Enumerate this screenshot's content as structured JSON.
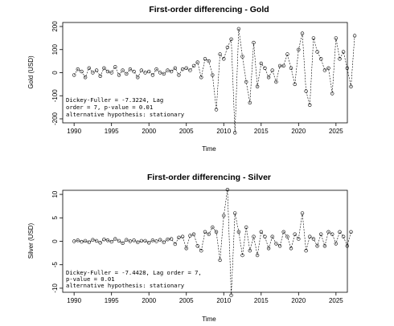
{
  "chart_data": [
    {
      "type": "line",
      "title": "First-order differencing - Gold",
      "xlabel": "Time",
      "ylabel": "Gold (USD)",
      "xlim": [
        1990,
        2025
      ],
      "ylim": [
        -200,
        200
      ],
      "x_ticks": [
        1990,
        1995,
        2000,
        2005,
        2010,
        2015,
        2020,
        2025
      ],
      "y_ticks": [
        -200,
        -100,
        0,
        100,
        200
      ],
      "grid": false,
      "marker": "open-circle",
      "line_style": "dashed",
      "annotation": [
        "Dickey-Fuller = -7.3224, Lag",
        "order = 7, p-value = 0.01",
        "alternative hypothesis: stationary"
      ],
      "series": [
        {
          "x_start": 1990.0,
          "x_step": 0.5,
          "values": [
            -10,
            15,
            5,
            -20,
            20,
            0,
            10,
            -15,
            20,
            5,
            0,
            25,
            -10,
            10,
            -5,
            15,
            5,
            -20,
            10,
            0,
            5,
            -10,
            15,
            0,
            -5,
            10,
            5,
            20,
            -10,
            15,
            20,
            10,
            30,
            45,
            -20,
            60,
            50,
            -10,
            -160,
            80,
            60,
            110,
            145,
            -260,
            190,
            70,
            -40,
            -130,
            130,
            -60,
            40,
            20,
            -20,
            10,
            -40,
            30,
            30,
            80,
            20,
            -50,
            100,
            170,
            -80,
            -140,
            150,
            90,
            60,
            10,
            20,
            -90,
            150,
            60,
            90,
            20,
            -60,
            160
          ]
        }
      ]
    },
    {
      "type": "line",
      "title": "First-order differencing - Silver",
      "xlabel": "Time",
      "ylabel": "Silver (USD)",
      "xlim": [
        1990,
        2025
      ],
      "ylim": [
        -10,
        10
      ],
      "x_ticks": [
        1990,
        1995,
        2000,
        2005,
        2010,
        2015,
        2020,
        2025
      ],
      "y_ticks": [
        -10,
        -5,
        0,
        5,
        10
      ],
      "grid": false,
      "marker": "open-circle",
      "line_style": "dashed",
      "annotation": [
        "Dickey-Fuller = -7.4428, Lag order = 7,",
        "p-value = 0.01",
        "alternative hypothesis: stationary"
      ],
      "series": [
        {
          "x_start": 1990.0,
          "x_step": 0.5,
          "values": [
            0,
            0.2,
            -0.1,
            0.1,
            -0.2,
            0.3,
            0.1,
            -0.3,
            0.4,
            0.2,
            -0.1,
            0.5,
            0.1,
            -0.4,
            0.3,
            0,
            0.2,
            -0.2,
            0.1,
            0.1,
            -0.3,
            0.2,
            0,
            0.3,
            -0.2,
            0.4,
            0.5,
            -0.6,
            0.8,
            1,
            -1.5,
            1.2,
            1.5,
            -1,
            -2,
            2,
            1.5,
            3,
            2,
            -4,
            5.5,
            11,
            -11.5,
            6,
            2,
            -3,
            3,
            -2,
            1,
            -3,
            2,
            1,
            -1.5,
            1,
            -0.5,
            -1,
            2,
            1,
            -1.5,
            1.5,
            0.5,
            6,
            -2,
            1,
            0.5,
            -1,
            1.5,
            -1,
            2,
            1.5,
            -0.5,
            2,
            1,
            -1,
            2
          ]
        }
      ]
    }
  ]
}
